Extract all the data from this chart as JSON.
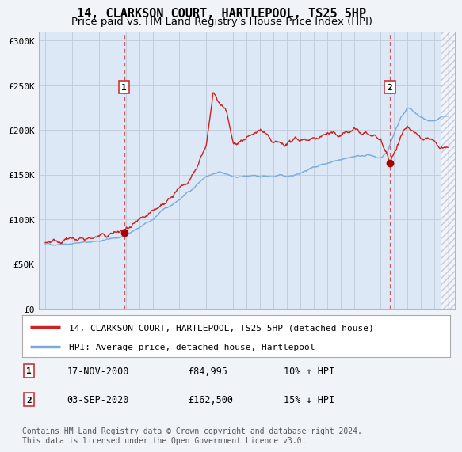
{
  "title": "14, CLARKSON COURT, HARTLEPOOL, TS25 5HP",
  "subtitle": "Price paid vs. HM Land Registry's House Price Index (HPI)",
  "ylim": [
    0,
    310000
  ],
  "yticks": [
    0,
    50000,
    100000,
    150000,
    200000,
    250000,
    300000
  ],
  "ytick_labels": [
    "£0",
    "£50K",
    "£100K",
    "£150K",
    "£200K",
    "£250K",
    "£300K"
  ],
  "legend_entry1": "14, CLARKSON COURT, HARTLEPOOL, TS25 5HP (detached house)",
  "legend_entry2": "HPI: Average price, detached house, Hartlepool",
  "marker1_date": "17-NOV-2000",
  "marker1_price": "£84,995",
  "marker1_hpi": "10% ↑ HPI",
  "marker1_x": 2000.88,
  "marker1_y": 84995,
  "marker2_date": "03-SEP-2020",
  "marker2_price": "£162,500",
  "marker2_hpi": "15% ↓ HPI",
  "marker2_x": 2020.67,
  "marker2_y": 162500,
  "footnote": "Contains HM Land Registry data © Crown copyright and database right 2024.\nThis data is licensed under the Open Government Licence v3.0.",
  "line1_color": "#cc2222",
  "line2_color": "#7aaadd",
  "marker_color": "#aa0000",
  "bg_color": "#f0f4f8",
  "plot_bg": "#dce8f5",
  "grid_color": "#aaaacc",
  "hatch_color": "#aaaacc",
  "title_fontsize": 11,
  "subtitle_fontsize": 9.5,
  "tick_fontsize": 8,
  "legend_fontsize": 8,
  "footnote_fontsize": 7,
  "xmin": 1994.5,
  "xmax": 2025.5
}
